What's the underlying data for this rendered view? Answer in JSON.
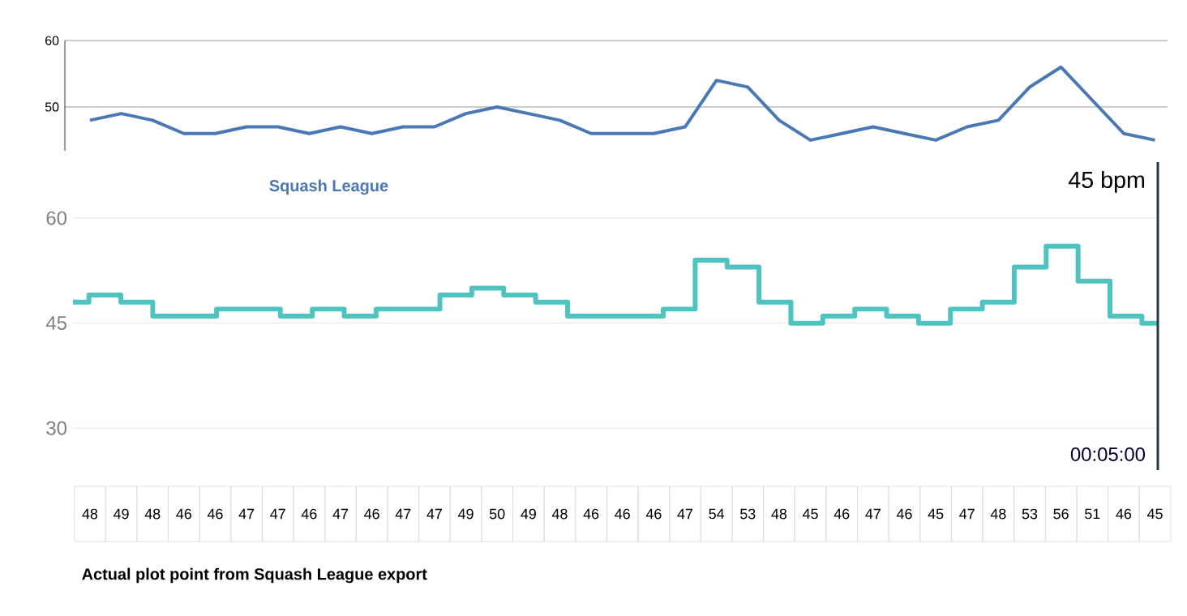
{
  "chart_data": [
    {
      "type": "line",
      "categories": [
        null,
        null,
        null,
        null,
        null,
        null,
        null,
        null,
        null,
        null,
        null,
        null,
        null,
        null,
        null,
        null,
        null,
        null,
        null,
        null,
        null,
        null,
        null,
        null,
        null,
        null,
        null,
        null,
        null,
        null,
        null,
        null,
        null,
        null,
        null
      ],
      "series": [
        {
          "name": "Squash League",
          "color": "#4a78b4",
          "values": [
            48,
            49,
            48,
            46,
            46,
            47,
            47,
            46,
            47,
            46,
            47,
            47,
            49,
            50,
            49,
            48,
            46,
            46,
            46,
            47,
            54,
            53,
            48,
            45,
            46,
            47,
            46,
            45,
            47,
            48,
            53,
            56,
            51,
            46,
            45
          ]
        }
      ],
      "ylim": [
        43.4,
        60
      ],
      "yticks": [
        50,
        60
      ],
      "grid": "y",
      "data_labels": true,
      "annotations": [
        "Actual plot point from Squash League export"
      ]
    },
    {
      "type": "step",
      "categories": [
        null,
        null,
        null,
        null,
        null,
        null,
        null,
        null,
        null,
        null,
        null,
        null,
        null,
        null,
        null,
        null,
        null,
        null,
        null,
        null,
        null,
        null,
        null,
        null,
        null,
        null,
        null,
        null,
        null,
        null,
        null,
        null,
        null,
        null,
        null
      ],
      "series": [
        {
          "color": "#4fc3bf",
          "values": [
            48,
            49,
            48,
            46,
            46,
            47,
            47,
            46,
            47,
            46,
            47,
            47,
            49,
            50,
            49,
            48,
            46,
            46,
            46,
            47,
            54,
            53,
            48,
            45,
            46,
            47,
            46,
            45,
            47,
            48,
            53,
            56,
            51,
            46,
            45
          ]
        }
      ],
      "ylim": [
        24,
        68
      ],
      "yticks": [
        30,
        45,
        60
      ],
      "grid": "y",
      "annotations": [
        "45 bpm",
        "00:05:00"
      ]
    }
  ]
}
